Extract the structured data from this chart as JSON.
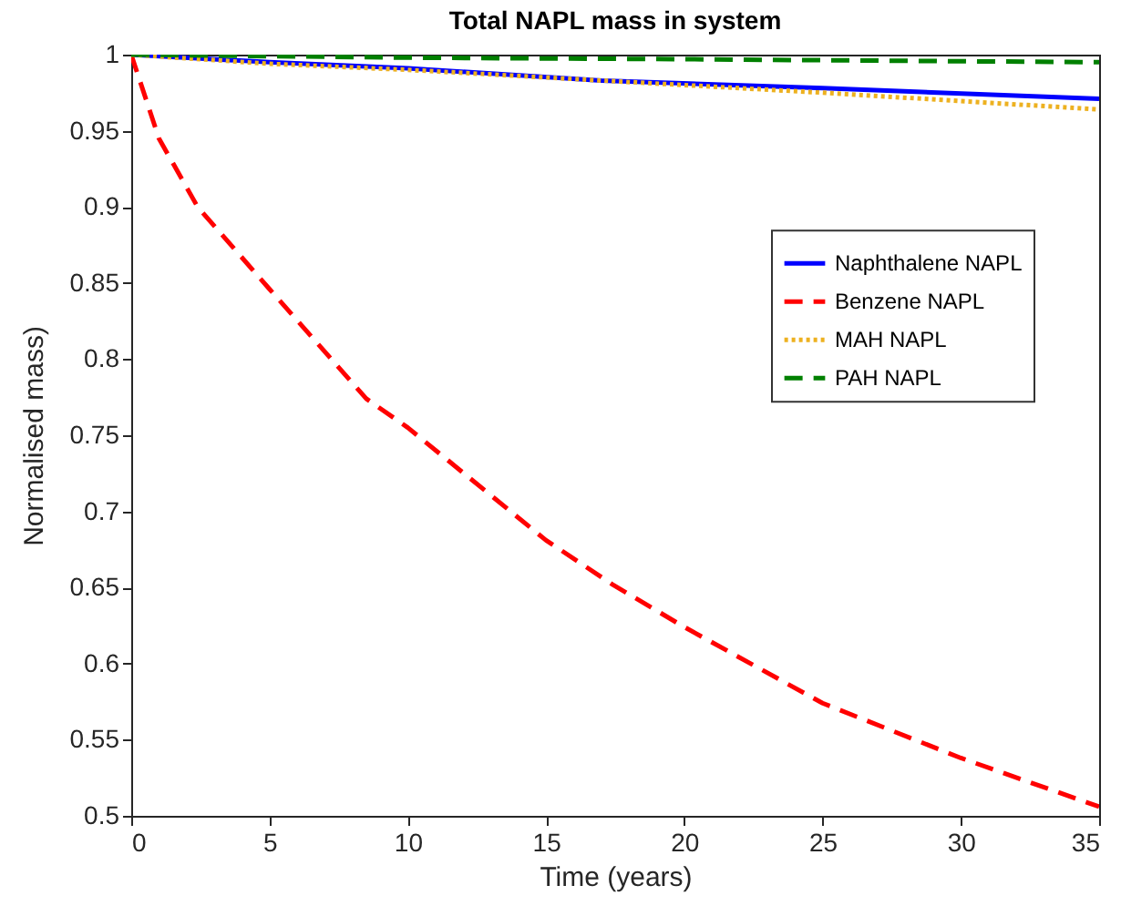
{
  "chart_data": {
    "type": "line",
    "title": "Total NAPL mass in system",
    "xlabel": "Time (years)",
    "ylabel": "Normalised mass)",
    "xlim": [
      0,
      35
    ],
    "ylim": [
      0.5,
      1
    ],
    "xticks": [
      0,
      5,
      10,
      15,
      20,
      25,
      30,
      35
    ],
    "yticks": [
      0.5,
      0.55,
      0.6,
      0.65,
      0.7,
      0.75,
      0.8,
      0.85,
      0.9,
      0.95,
      1
    ],
    "grid": false,
    "legend": "right",
    "marker": "none",
    "series": [
      {
        "name": "Naphthalene NAPL",
        "color": "#0000ff",
        "line_style": "solid",
        "x": [
          0,
          5,
          10,
          17,
          25,
          35
        ],
        "values": [
          1,
          0.995,
          0.991,
          0.983,
          0.978,
          0.971
        ]
      },
      {
        "name": "Benzene NAPL",
        "color": "#ff0000",
        "line_style": "dashed",
        "x": [
          0,
          1,
          2.4,
          5,
          8.5,
          10,
          15,
          17.4,
          20,
          25,
          30,
          35
        ],
        "values": [
          1,
          0.945,
          0.9,
          0.846,
          0.774,
          0.755,
          0.681,
          0.652,
          0.624,
          0.574,
          0.538,
          0.506
        ]
      },
      {
        "name": "MAH NAPL",
        "color": "#edb120",
        "line_style": "dotted",
        "x": [
          0,
          5,
          10,
          17,
          25,
          35
        ],
        "values": [
          1,
          0.994,
          0.99,
          0.983,
          0.975,
          0.964
        ]
      },
      {
        "name": "PAH NAPL",
        "color": "#008000",
        "line_style": "dashed",
        "x": [
          0,
          10,
          20,
          35
        ],
        "values": [
          1,
          0.998,
          0.997,
          0.995
        ]
      }
    ]
  }
}
